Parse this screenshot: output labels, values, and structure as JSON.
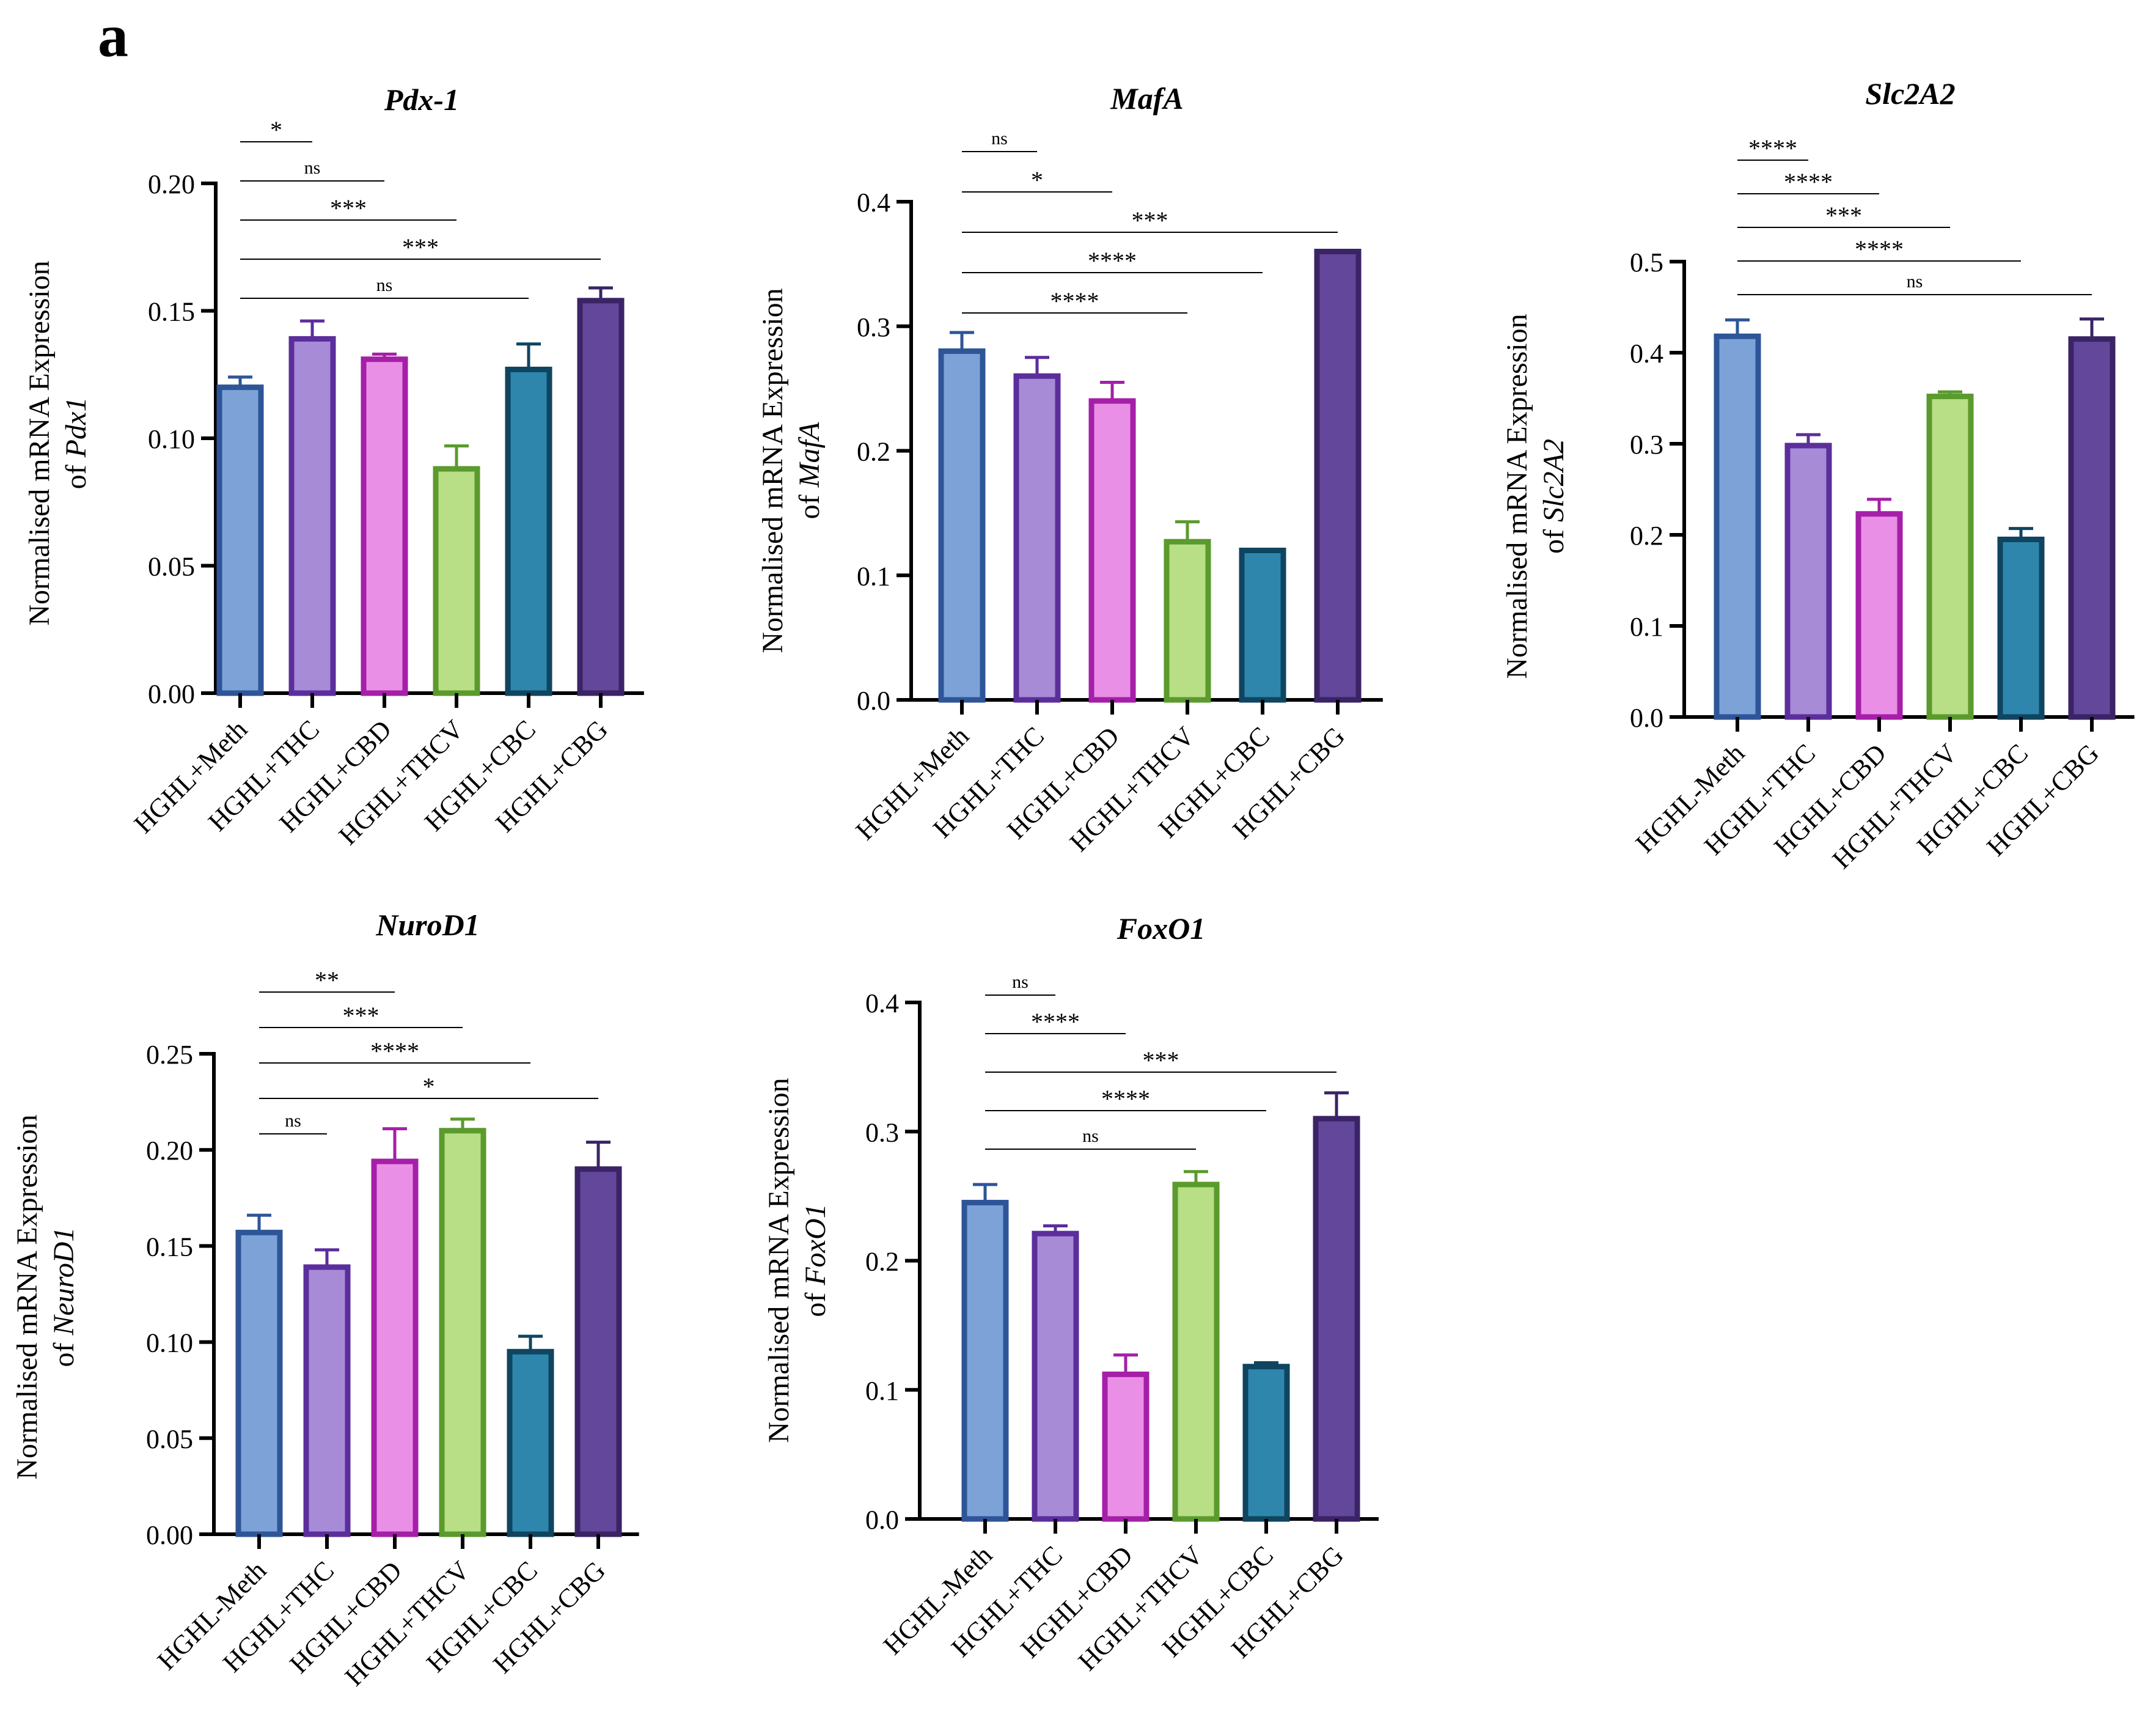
{
  "figure": {
    "panel_letter": "a"
  },
  "colors": {
    "HGHL+Meth": {
      "fill": "#7da2d8",
      "stroke": "#2e5597"
    },
    "HGHL-Meth": {
      "fill": "#7da2d8",
      "stroke": "#2e5597"
    },
    "HGHL+THC": {
      "fill": "#a88bd6",
      "stroke": "#5b2e9c"
    },
    "HGHL+CBD": {
      "fill": "#ea8fe6",
      "stroke": "#a51fa8"
    },
    "HGHL+THCV": {
      "fill": "#b8de86",
      "stroke": "#5b9a2d"
    },
    "HGHL+CBC": {
      "fill": "#2e86ac",
      "stroke": "#0f4560"
    },
    "HGHL+CBG": {
      "fill": "#62479a",
      "stroke": "#3a2466"
    }
  },
  "chart_data": [
    {
      "id": "pdx1",
      "type": "bar",
      "title": "Pdx-1",
      "ylabel_line1": "Normalised mRNA Expression",
      "ylabel_prefix": "of ",
      "ylabel_gene": "Pdx1",
      "categories": [
        "HGHL+Meth",
        "HGHL+THC",
        "HGHL+CBD",
        "HGHL+THCV",
        "HGHL+CBC",
        "HGHL+CBG"
      ],
      "values": [
        0.12,
        0.139,
        0.131,
        0.088,
        0.127,
        0.154
      ],
      "errors": [
        0.004,
        0.007,
        0.002,
        0.009,
        0.01,
        0.005
      ],
      "ylim": [
        0,
        0.2
      ],
      "yticks": [
        0.0,
        0.05,
        0.1,
        0.15,
        0.2
      ],
      "ytick_labels": [
        "0.00",
        "0.05",
        "0.10",
        "0.15",
        "0.20"
      ],
      "comparisons": [
        {
          "from": 0,
          "to": 1,
          "label": "*"
        },
        {
          "from": 0,
          "to": 2,
          "label": "ns"
        },
        {
          "from": 0,
          "to": 3,
          "label": "***"
        },
        {
          "from": 0,
          "to": 5,
          "label": "***"
        },
        {
          "from": 0,
          "to": 4,
          "label": "ns"
        }
      ]
    },
    {
      "id": "mafa",
      "type": "bar",
      "title": "MafA",
      "ylabel_line1": "Normalised mRNA Expression",
      "ylabel_prefix": "of ",
      "ylabel_gene": "MafA",
      "categories": [
        "HGHL+Meth",
        "HGHL+THC",
        "HGHL+CBD",
        "HGHL+THCV",
        "HGHL+CBC",
        "HGHL+CBG"
      ],
      "values": [
        0.28,
        0.26,
        0.24,
        0.127,
        0.12,
        0.36
      ],
      "errors": [
        0.015,
        0.015,
        0.015,
        0.016,
        0.0,
        0.0
      ],
      "ylim": [
        0,
        0.4
      ],
      "yticks": [
        0.0,
        0.1,
        0.2,
        0.3,
        0.4
      ],
      "ytick_labels": [
        "0.0",
        "0.1",
        "0.2",
        "0.3",
        "0.4"
      ],
      "comparisons": [
        {
          "from": 0,
          "to": 1,
          "label": "ns"
        },
        {
          "from": 0,
          "to": 2,
          "label": "*"
        },
        {
          "from": 0,
          "to": 5,
          "label": "***"
        },
        {
          "from": 0,
          "to": 4,
          "label": "****"
        },
        {
          "from": 0,
          "to": 3,
          "label": "****"
        }
      ]
    },
    {
      "id": "slc2a2",
      "type": "bar",
      "title": "Slc2A2",
      "ylabel_line1": "Normalised mRNA Expression",
      "ylabel_prefix": "of ",
      "ylabel_gene": "Slc2A2",
      "categories": [
        "HGHL-Meth",
        "HGHL+THC",
        "HGHL+CBD",
        "HGHL+THCV",
        "HGHL+CBC",
        "HGHL+CBG"
      ],
      "values": [
        0.418,
        0.298,
        0.223,
        0.352,
        0.195,
        0.415
      ],
      "errors": [
        0.018,
        0.012,
        0.016,
        0.005,
        0.012,
        0.022
      ],
      "ylim": [
        0,
        0.5
      ],
      "yticks": [
        0.0,
        0.1,
        0.2,
        0.3,
        0.4,
        0.5
      ],
      "ytick_labels": [
        "0.0",
        "0.1",
        "0.2",
        "0.3",
        "0.4",
        "0.5"
      ],
      "comparisons": [
        {
          "from": 0,
          "to": 1,
          "label": "****"
        },
        {
          "from": 0,
          "to": 2,
          "label": "****"
        },
        {
          "from": 0,
          "to": 3,
          "label": "***"
        },
        {
          "from": 0,
          "to": 4,
          "label": "****"
        },
        {
          "from": 0,
          "to": 5,
          "label": "ns"
        }
      ]
    },
    {
      "id": "nurod1",
      "type": "bar",
      "title": "NuroD1",
      "ylabel_line1": "Normalised mRNA Expression",
      "ylabel_prefix": "of ",
      "ylabel_gene": "NeuroD1",
      "categories": [
        "HGHL-Meth",
        "HGHL+THC",
        "HGHL+CBD",
        "HGHL+THCV",
        "HGHL+CBC",
        "HGHL+CBG"
      ],
      "values": [
        0.157,
        0.139,
        0.194,
        0.21,
        0.095,
        0.19
      ],
      "errors": [
        0.009,
        0.009,
        0.017,
        0.006,
        0.008,
        0.014
      ],
      "ylim": [
        0,
        0.25
      ],
      "yticks": [
        0.0,
        0.05,
        0.1,
        0.15,
        0.2,
        0.25
      ],
      "ytick_labels": [
        "0.00",
        "0.05",
        "0.10",
        "0.15",
        "0.20",
        "0.25"
      ],
      "comparisons": [
        {
          "from": 0,
          "to": 2,
          "label": "**"
        },
        {
          "from": 0,
          "to": 3,
          "label": "***"
        },
        {
          "from": 0,
          "to": 4,
          "label": "****"
        },
        {
          "from": 0,
          "to": 5,
          "label": "*"
        },
        {
          "from": 0,
          "to": 1,
          "label": "ns"
        }
      ]
    },
    {
      "id": "foxo1",
      "type": "bar",
      "title": "FoxO1",
      "ylabel_line1": "Normalised mRNA Expression",
      "ylabel_prefix": "of ",
      "ylabel_gene": "FoxO1",
      "categories": [
        "HGHL-Meth",
        "HGHL+THC",
        "HGHL+CBD",
        "HGHL+THCV",
        "HGHL+CBC",
        "HGHL+CBG"
      ],
      "values": [
        0.245,
        0.221,
        0.112,
        0.259,
        0.118,
        0.31
      ],
      "errors": [
        0.014,
        0.006,
        0.015,
        0.01,
        0.003,
        0.02
      ],
      "ylim": [
        0,
        0.4
      ],
      "yticks": [
        0.0,
        0.1,
        0.2,
        0.3,
        0.4
      ],
      "ytick_labels": [
        "0.0",
        "0.1",
        "0.2",
        "0.3",
        "0.4"
      ],
      "comparisons": [
        {
          "from": 0,
          "to": 1,
          "label": "ns"
        },
        {
          "from": 0,
          "to": 2,
          "label": "****"
        },
        {
          "from": 0,
          "to": 5,
          "label": "***"
        },
        {
          "from": 0,
          "to": 4,
          "label": "****"
        },
        {
          "from": 0,
          "to": 3,
          "label": "ns"
        }
      ]
    }
  ]
}
